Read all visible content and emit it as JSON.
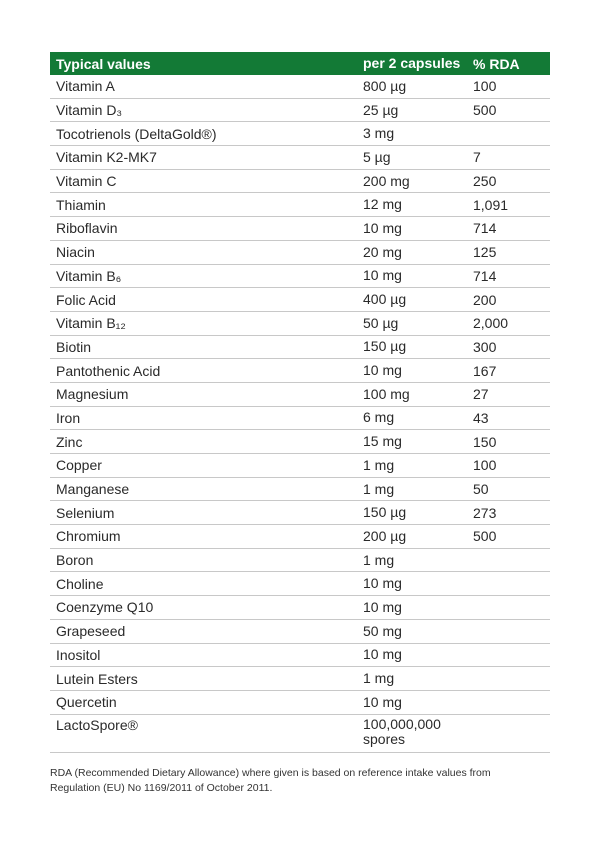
{
  "table": {
    "headers": [
      "Typical values",
      "per 2 capsules",
      "% RDA"
    ],
    "rows": [
      [
        "Vitamin A",
        "800 µg",
        "100"
      ],
      [
        "Vitamin D₃",
        "25 µg",
        "500"
      ],
      [
        "Tocotrienols (DeltaGold®)",
        "3 mg",
        ""
      ],
      [
        "Vitamin K2-MK7",
        "5 µg",
        "7"
      ],
      [
        "Vitamin C",
        "200 mg",
        "250"
      ],
      [
        "Thiamin",
        "12 mg",
        "1,091"
      ],
      [
        "Riboflavin",
        "10 mg",
        "714"
      ],
      [
        "Niacin",
        "20 mg",
        "125"
      ],
      [
        "Vitamin B₆",
        "10 mg",
        "714"
      ],
      [
        "Folic Acid",
        "400 µg",
        "200"
      ],
      [
        "Vitamin B₁₂",
        "50 µg",
        "2,000"
      ],
      [
        "Biotin",
        "150 µg",
        "300"
      ],
      [
        "Pantothenic Acid",
        "10 mg",
        "167"
      ],
      [
        "Magnesium",
        "100 mg",
        "27"
      ],
      [
        "Iron",
        "6 mg",
        "43"
      ],
      [
        "Zinc",
        "15 mg",
        "150"
      ],
      [
        "Copper",
        "1 mg",
        "100"
      ],
      [
        "Manganese",
        "1 mg",
        "50"
      ],
      [
        "Selenium",
        "150 µg",
        "273"
      ],
      [
        "Chromium",
        "200 µg",
        "500"
      ],
      [
        "Boron",
        "1 mg",
        ""
      ],
      [
        "Choline",
        "10 mg",
        ""
      ],
      [
        "Coenzyme Q10",
        "10 mg",
        ""
      ],
      [
        "Grapeseed",
        "50 mg",
        ""
      ],
      [
        "Inositol",
        "10 mg",
        ""
      ],
      [
        "Lutein Esters",
        "1 mg",
        ""
      ],
      [
        "Quercetin",
        "10 mg",
        ""
      ],
      [
        "LactoSpore®",
        "100,000,000 spores",
        ""
      ]
    ]
  },
  "footnote": "RDA (Recommended Dietary Allowance) where given is based on reference intake values from Regulation (EU) No 1169/2011 of October 2011.",
  "colors": {
    "header_bg": "#137a36",
    "header_text": "#ffffff"
  }
}
